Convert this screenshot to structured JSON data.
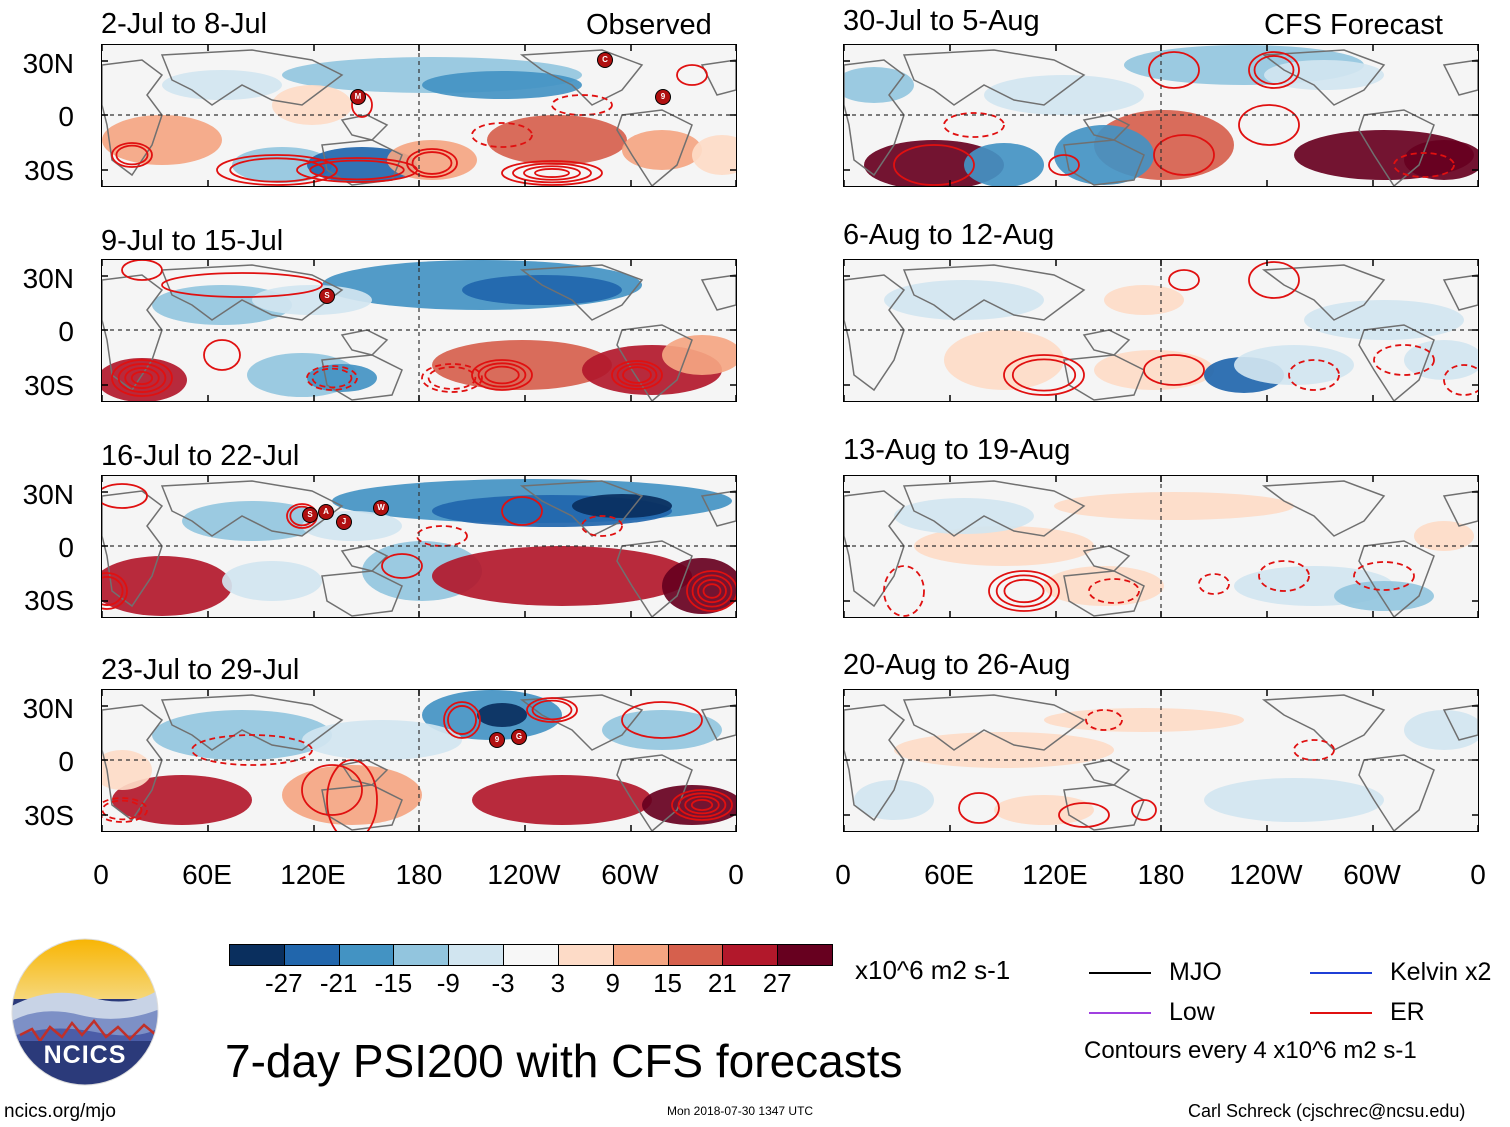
{
  "columns": {
    "left_header": "Observed",
    "right_header": "CFS Forecast"
  },
  "panels": [
    {
      "id": "p1",
      "period": "2-Jul to 8-Jul",
      "source": "Observed"
    },
    {
      "id": "p2",
      "period": "9-Jul to 15-Jul",
      "source": "Observed"
    },
    {
      "id": "p3",
      "period": "16-Jul to 22-Jul",
      "source": "Observed"
    },
    {
      "id": "p4",
      "period": "23-Jul to 29-Jul",
      "source": "Observed"
    },
    {
      "id": "p5",
      "period": "30-Jul to 5-Aug",
      "source": "CFS Forecast"
    },
    {
      "id": "p6",
      "period": "6-Aug to 12-Aug",
      "source": "CFS Forecast"
    },
    {
      "id": "p7",
      "period": "13-Aug to 19-Aug",
      "source": "CFS Forecast"
    },
    {
      "id": "p8",
      "period": "20-Aug to 26-Aug",
      "source": "CFS Forecast"
    }
  ],
  "axes": {
    "y_ticks": [
      "30N",
      "0",
      "30S"
    ],
    "x_ticks": [
      "0",
      "60E",
      "120E",
      "180",
      "120W",
      "60W",
      "0"
    ]
  },
  "storm_markers": {
    "p1": [
      "C",
      "M",
      "9"
    ],
    "p2": [
      "S"
    ],
    "p3": [
      "S",
      "A",
      "J",
      "W"
    ],
    "p4": [
      "9",
      "G"
    ]
  },
  "colorbar": {
    "colors": [
      "#0a2f5e",
      "#2166ac",
      "#4393c3",
      "#92c5de",
      "#d1e5f0",
      "#f7f7f7",
      "#fddbc7",
      "#f4a582",
      "#d6604d",
      "#b2182b",
      "#67001f"
    ],
    "labels": [
      "-27",
      "-21",
      "-15",
      "-9",
      "-3",
      "3",
      "9",
      "15",
      "21",
      "27"
    ],
    "units": "x10^6 m2 s-1"
  },
  "legend": {
    "items": [
      {
        "label": "MJO",
        "color": "#000000"
      },
      {
        "label": "Kelvin x2",
        "color": "#1f3fd6"
      },
      {
        "label": "Low",
        "color": "#a040e0"
      },
      {
        "label": "ER",
        "color": "#e01010"
      }
    ],
    "note": "Contours every 4 x10^6 m2 s-1"
  },
  "footer": {
    "title": "7-day PSI200 with CFS forecasts",
    "logo_text": "NCICS",
    "url": "ncics.org/mjo",
    "timestamp": "Mon 2018-07-30 1347 UTC",
    "credit": "Carl Schreck (cjschrec@ncsu.edu)"
  }
}
